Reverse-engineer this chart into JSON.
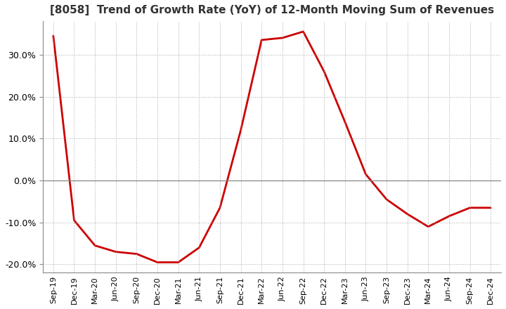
{
  "title": "[8058]  Trend of Growth Rate (YoY) of 12-Month Moving Sum of Revenues",
  "line_color": "#cc0000",
  "line_width": 2.0,
  "background_color": "#ffffff",
  "plot_background_color": "#ffffff",
  "ylim": [
    -0.22,
    0.38
  ],
  "yticks": [
    -0.2,
    -0.1,
    0.0,
    0.1,
    0.2,
    0.3
  ],
  "x_labels": [
    "Sep-19",
    "Dec-19",
    "Mar-20",
    "Jun-20",
    "Sep-20",
    "Dec-20",
    "Mar-21",
    "Jun-21",
    "Sep-21",
    "Dec-21",
    "Mar-22",
    "Jun-22",
    "Sep-22",
    "Dec-22",
    "Mar-23",
    "Jun-23",
    "Sep-23",
    "Dec-23",
    "Mar-24",
    "Jun-24",
    "Sep-24",
    "Dec-24"
  ],
  "data_points": [
    [
      0,
      0.345
    ],
    [
      1,
      -0.095
    ],
    [
      2,
      -0.155
    ],
    [
      3,
      -0.17
    ],
    [
      4,
      -0.175
    ],
    [
      5,
      -0.195
    ],
    [
      6,
      -0.195
    ],
    [
      7,
      -0.16
    ],
    [
      8,
      -0.065
    ],
    [
      9,
      0.12
    ],
    [
      10,
      0.335
    ],
    [
      11,
      0.34
    ],
    [
      12,
      0.355
    ],
    [
      13,
      0.26
    ],
    [
      14,
      0.14
    ],
    [
      15,
      0.015
    ],
    [
      16,
      -0.045
    ],
    [
      17,
      -0.08
    ],
    [
      18,
      -0.11
    ],
    [
      19,
      -0.085
    ],
    [
      20,
      -0.065
    ],
    [
      21,
      -0.065
    ]
  ]
}
